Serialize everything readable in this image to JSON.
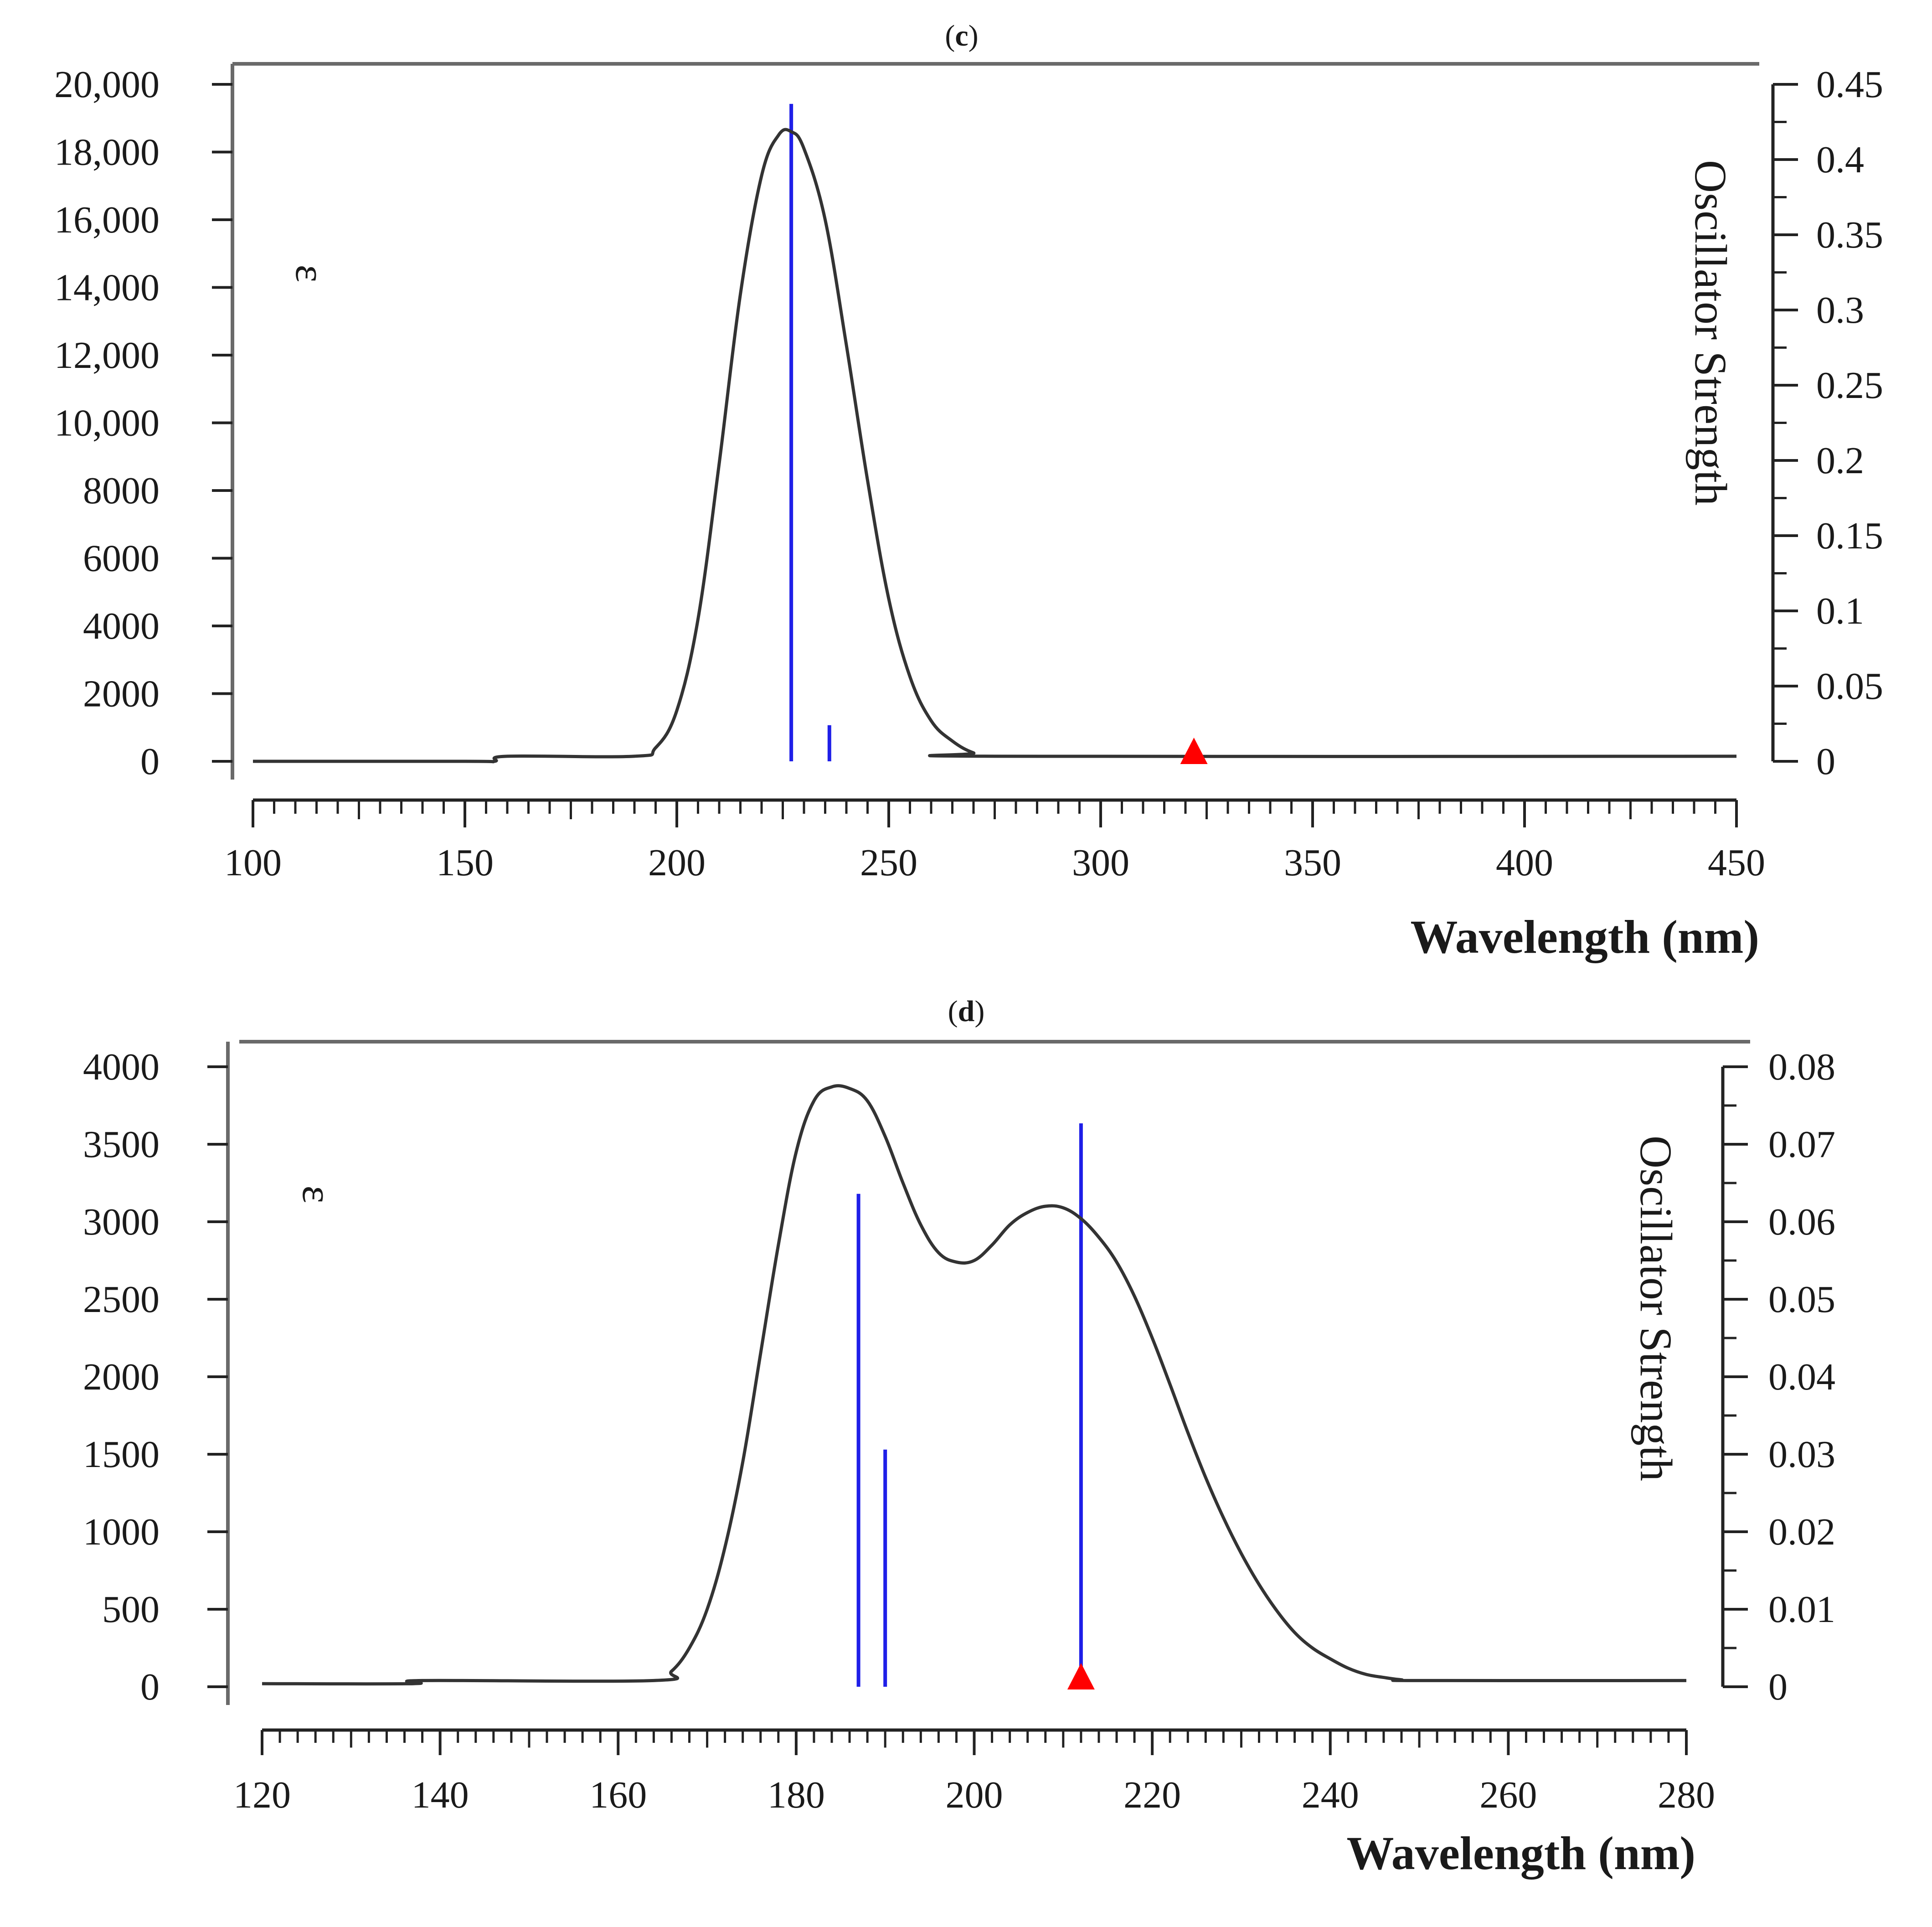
{
  "colors": {
    "background": "#ffffff",
    "curve": "#333333",
    "oscillator": "#1f1fe8",
    "marker": "#ff0000",
    "axis": "#6a6a6a",
    "text": "#1a1a1a"
  },
  "chart_data": [
    {
      "panel": "c",
      "type": "line",
      "title": "(c)",
      "title_letter": "c",
      "xlabel": "Wavelength (nm)",
      "ylabel_left": "ε",
      "ylabel_right": "Oscillator Strength",
      "xlim": [
        100,
        450
      ],
      "ylim_left": [
        0,
        20000
      ],
      "ylim_right": [
        0,
        0.45
      ],
      "x_ticks": [
        100,
        150,
        200,
        250,
        300,
        350,
        400,
        450
      ],
      "x_tick_labels": [
        "100",
        "150",
        "200",
        "250",
        "300",
        "350",
        "400",
        "450"
      ],
      "y_left_ticks": [
        0,
        2000,
        4000,
        6000,
        8000,
        10000,
        12000,
        14000,
        16000,
        18000,
        20000
      ],
      "y_left_tick_labels": [
        "0",
        "2000",
        "4000",
        "6000",
        "8000",
        "10,000",
        "12,000",
        "14,000",
        "16,000",
        "18,000",
        "20,000"
      ],
      "y_right_ticks": [
        0,
        0.05,
        0.1,
        0.15,
        0.2,
        0.25,
        0.3,
        0.35,
        0.4,
        0.45
      ],
      "y_right_tick_labels": [
        "0",
        "0.05",
        "0.1",
        "0.15",
        "0.2",
        "0.25",
        "0.3",
        "0.35",
        "0.4",
        "0.45"
      ],
      "series": [
        {
          "name": "ε",
          "x": [
            100,
            150,
            157,
            160,
            190,
            195,
            200,
            205,
            210,
            215,
            220,
            224,
            227,
            230,
            235,
            240,
            245,
            250,
            255,
            260,
            265,
            270,
            275,
            450
          ],
          "y": [
            0,
            0,
            0,
            150,
            150,
            400,
            1500,
            4200,
            8800,
            13800,
            17300,
            18500,
            18600,
            18100,
            16000,
            12300,
            8300,
            4800,
            2500,
            1200,
            600,
            250,
            150,
            150
          ]
        }
      ],
      "oscillator_lines": [
        {
          "x": 227,
          "f": 0.437
        },
        {
          "x": 236,
          "f": 0.024
        }
      ],
      "markers": [
        {
          "x": 322,
          "f": 0
        }
      ]
    },
    {
      "panel": "d",
      "type": "line",
      "title": "(d)",
      "title_letter": "d",
      "xlabel": "Wavelength (nm)",
      "ylabel_left": "ε",
      "ylabel_right": "Oscillator Strength",
      "xlim": [
        120,
        280
      ],
      "ylim_left": [
        0,
        4000
      ],
      "ylim_right": [
        0,
        0.08
      ],
      "x_ticks": [
        120,
        140,
        160,
        180,
        200,
        220,
        240,
        260,
        280
      ],
      "x_tick_labels": [
        "120",
        "140",
        "160",
        "180",
        "200",
        "220",
        "240",
        "260",
        "280"
      ],
      "y_left_ticks": [
        0,
        500,
        1000,
        1500,
        2000,
        2500,
        3000,
        3500,
        4000
      ],
      "y_left_tick_labels": [
        "0",
        "500",
        "1000",
        "1500",
        "2000",
        "2500",
        "3000",
        "3500",
        "4000"
      ],
      "y_right_ticks": [
        0,
        0.01,
        0.02,
        0.03,
        0.04,
        0.05,
        0.06,
        0.07,
        0.08
      ],
      "y_right_tick_labels": [
        "0",
        "0.01",
        "0.02",
        "0.03",
        "0.04",
        "0.05",
        "0.06",
        "0.07",
        "0.08"
      ],
      "series": [
        {
          "name": "ε",
          "x": [
            120,
            137,
            138,
            164,
            166,
            168,
            170,
            172,
            174,
            176,
            178,
            180,
            182,
            184,
            186,
            188,
            190,
            192,
            194,
            196,
            198,
            200,
            202,
            204,
            206,
            208,
            210,
            212,
            214,
            216,
            218,
            220,
            222,
            224,
            226,
            228,
            230,
            232,
            234,
            236,
            238,
            240,
            242,
            244,
            246,
            248,
            250,
            280
          ],
          "y": [
            20,
            20,
            40,
            40,
            100,
            250,
            500,
            900,
            1450,
            2150,
            2850,
            3450,
            3780,
            3870,
            3860,
            3780,
            3550,
            3250,
            2980,
            2800,
            2740,
            2750,
            2850,
            2980,
            3060,
            3100,
            3090,
            3020,
            2900,
            2740,
            2520,
            2250,
            1950,
            1640,
            1350,
            1090,
            860,
            660,
            490,
            350,
            250,
            180,
            120,
            80,
            60,
            45,
            40,
            40
          ]
        }
      ],
      "oscillator_lines": [
        {
          "x": 187,
          "f": 0.0636
        },
        {
          "x": 190,
          "f": 0.0306
        },
        {
          "x": 212,
          "f": 0.0727
        }
      ],
      "markers": [
        {
          "x": 212,
          "f": 0
        }
      ]
    }
  ]
}
